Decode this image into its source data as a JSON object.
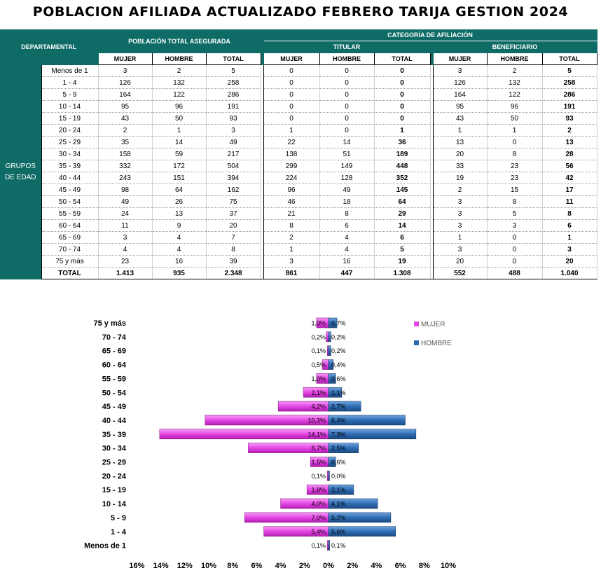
{
  "title": "POBLACION AFILIADA ACTUALIZADO FEBRERO TARIJA GESTION 2024",
  "table": {
    "header_departamental": "DEPARTAMENTAL",
    "header_poblacion": "POBLACIÓN TOTAL ASEGURADA",
    "header_categoria": "CATEGORÍA DE AFILIACIÓN",
    "header_titular": "TITULAR",
    "header_beneficiario": "BENEFICIARIO",
    "col_mujer": "MUJER",
    "col_hombre": "HOMBRE",
    "col_total": "TOTAL",
    "side_label": "GRUPOS DE EDAD",
    "rows": [
      {
        "label": "Menos de 1",
        "pt": [
          "3",
          "2",
          "5"
        ],
        "ti": [
          "0",
          "0",
          "0"
        ],
        "be": [
          "3",
          "2",
          "5"
        ]
      },
      {
        "label": "1 - 4",
        "pt": [
          "126",
          "132",
          "258"
        ],
        "ti": [
          "0",
          "0",
          "0"
        ],
        "be": [
          "126",
          "132",
          "258"
        ]
      },
      {
        "label": "5 - 9",
        "pt": [
          "164",
          "122",
          "286"
        ],
        "ti": [
          "0",
          "0",
          "0"
        ],
        "be": [
          "164",
          "122",
          "286"
        ]
      },
      {
        "label": "10 - 14",
        "pt": [
          "95",
          "96",
          "191"
        ],
        "ti": [
          "0",
          "0",
          "0"
        ],
        "be": [
          "95",
          "96",
          "191"
        ]
      },
      {
        "label": "15 - 19",
        "pt": [
          "43",
          "50",
          "93"
        ],
        "ti": [
          "0",
          "0",
          "0"
        ],
        "be": [
          "43",
          "50",
          "93"
        ]
      },
      {
        "label": "20 - 24",
        "pt": [
          "2",
          "1",
          "3"
        ],
        "ti": [
          "1",
          "0",
          "1"
        ],
        "be": [
          "1",
          "1",
          "2"
        ]
      },
      {
        "label": "25 - 29",
        "pt": [
          "35",
          "14",
          "49"
        ],
        "ti": [
          "22",
          "14",
          "36"
        ],
        "be": [
          "13",
          "0",
          "13"
        ]
      },
      {
        "label": "30 - 34",
        "pt": [
          "158",
          "59",
          "217"
        ],
        "ti": [
          "138",
          "51",
          "189"
        ],
        "be": [
          "20",
          "8",
          "28"
        ]
      },
      {
        "label": "35 - 39",
        "pt": [
          "332",
          "172",
          "504"
        ],
        "ti": [
          "299",
          "149",
          "448"
        ],
        "be": [
          "33",
          "23",
          "56"
        ]
      },
      {
        "label": "40 - 44",
        "pt": [
          "243",
          "151",
          "394"
        ],
        "ti": [
          "224",
          "128",
          "352"
        ],
        "be": [
          "19",
          "23",
          "42"
        ]
      },
      {
        "label": "45 - 49",
        "pt": [
          "98",
          "64",
          "162"
        ],
        "ti": [
          "96",
          "49",
          "145"
        ],
        "be": [
          "2",
          "15",
          "17"
        ]
      },
      {
        "label": "50 - 54",
        "pt": [
          "49",
          "26",
          "75"
        ],
        "ti": [
          "46",
          "18",
          "64"
        ],
        "be": [
          "3",
          "8",
          "11"
        ]
      },
      {
        "label": "55 - 59",
        "pt": [
          "24",
          "13",
          "37"
        ],
        "ti": [
          "21",
          "8",
          "29"
        ],
        "be": [
          "3",
          "5",
          "8"
        ]
      },
      {
        "label": "60 - 64",
        "pt": [
          "11",
          "9",
          "20"
        ],
        "ti": [
          "8",
          "6",
          "14"
        ],
        "be": [
          "3",
          "3",
          "6"
        ]
      },
      {
        "label": "65 - 69",
        "pt": [
          "3",
          "4",
          "7"
        ],
        "ti": [
          "2",
          "4",
          "6"
        ],
        "be": [
          "1",
          "0",
          "1"
        ]
      },
      {
        "label": "70 - 74",
        "pt": [
          "4",
          "4",
          "8"
        ],
        "ti": [
          "1",
          "4",
          "5"
        ],
        "be": [
          "3",
          "0",
          "3"
        ]
      },
      {
        "label": "75 y más",
        "pt": [
          "23",
          "16",
          "39"
        ],
        "ti": [
          "3",
          "16",
          "19"
        ],
        "be": [
          "20",
          "0",
          "20"
        ]
      }
    ],
    "total_row": {
      "label": "TOTAL",
      "pt": [
        "1.413",
        "935",
        "2.348"
      ],
      "ti": [
        "861",
        "447",
        "1.308"
      ],
      "be": [
        "552",
        "488",
        "1.040"
      ]
    }
  },
  "colors": {
    "header_teal": "#0e6b66",
    "mujer": "#e646e6",
    "hombre": "#2e6db4"
  },
  "chart_data": {
    "type": "bar",
    "orientation": "horizontal",
    "layout": "population-pyramid",
    "categories": [
      "Menos de 1",
      "1 - 4",
      "5 - 9",
      "10 - 14",
      "15 - 19",
      "20 - 24",
      "25 - 29",
      "30 - 34",
      "35 - 39",
      "40 - 44",
      "45 - 49",
      "50 - 54",
      "55 - 59",
      "60 - 64",
      "65 - 69",
      "70 - 74",
      "75 y más"
    ],
    "series": [
      {
        "name": "MUJER",
        "side": "left",
        "color": "#e646e6",
        "values": [
          0.1,
          5.4,
          7.0,
          4.0,
          1.8,
          0.1,
          1.5,
          6.7,
          14.1,
          10.3,
          4.2,
          2.1,
          1.0,
          0.5,
          0.1,
          0.2,
          1.0
        ],
        "labels": [
          "0,1%",
          "5,4%",
          "7,0%",
          "4,0%",
          "1,8%",
          "0,1%",
          "1,5%",
          "6,7%",
          "14,1%",
          "10,3%",
          "4,2%",
          "2,1%",
          "1,0%",
          "0,5%",
          "0,1%",
          "0,2%",
          "1,0%"
        ]
      },
      {
        "name": "HOMBRE",
        "side": "right",
        "color": "#2e6db4",
        "values": [
          0.1,
          5.6,
          5.2,
          4.1,
          2.1,
          0.0,
          0.6,
          2.5,
          7.3,
          6.4,
          2.7,
          1.1,
          0.6,
          0.4,
          0.2,
          0.2,
          0.7
        ],
        "labels": [
          "0,1%",
          "5,6%",
          "5,2%",
          "4,1%",
          "2,1%",
          "0,0%",
          "0,6%",
          "2,5%",
          "7,3%",
          "6,4%",
          "2,7%",
          "1,1%",
          "0,6%",
          "0,4%",
          "0,2%",
          "0,2%",
          "0,7%"
        ]
      }
    ],
    "x_ticks": [
      "16%",
      "14%",
      "12%",
      "10%",
      "8%",
      "6%",
      "4%",
      "2%",
      "0%",
      "2%",
      "4%",
      "6%",
      "8%",
      "10%"
    ],
    "xlim_left": 16,
    "xlim_right": 10,
    "legend": [
      "MUJER",
      "HOMBRE"
    ],
    "legend_position": "top-right",
    "grid": false
  }
}
